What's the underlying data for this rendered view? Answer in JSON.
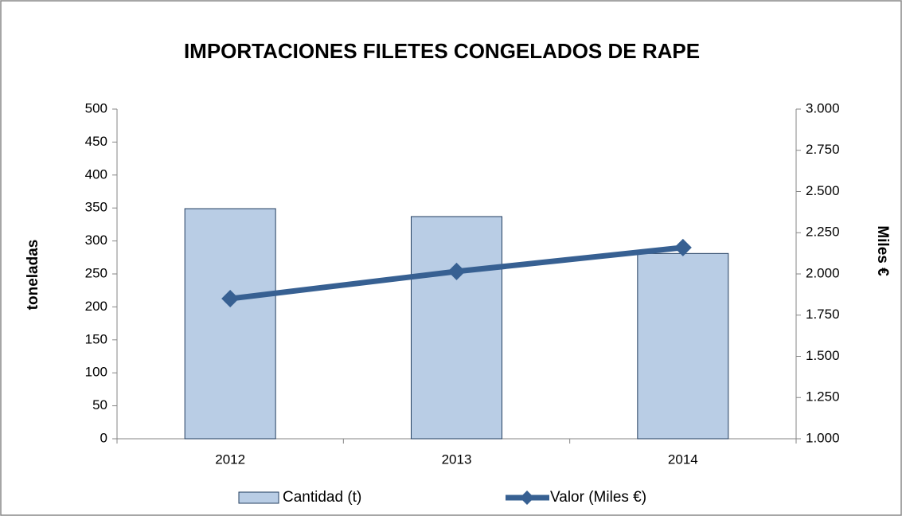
{
  "chart_data": {
    "type": "bar",
    "title": "IMPORTACIONES FILETES CONGELADOS DE RAPE",
    "categories": [
      "2012",
      "2013",
      "2014"
    ],
    "series": [
      {
        "name": "Cantidad (t)",
        "type": "bar",
        "color": "#b9cde5",
        "values": [
          349,
          337,
          281
        ]
      },
      {
        "name": "Valor (Miles €)",
        "type": "line",
        "axis": "y2",
        "color": "#376092",
        "values": [
          1850,
          2015,
          2160
        ]
      }
    ],
    "ylabel": "toneladas",
    "y2label": "Miles €",
    "ylim": [
      0,
      500
    ],
    "yticks": [
      0,
      50,
      100,
      150,
      200,
      250,
      300,
      350,
      400,
      450,
      500
    ],
    "y2lim": [
      1000,
      3000
    ],
    "y2ticks": [
      {
        "value": 1000,
        "label": "1.000"
      },
      {
        "value": 1250,
        "label": "1.250"
      },
      {
        "value": 1500,
        "label": "1.500"
      },
      {
        "value": 1750,
        "label": "1.750"
      },
      {
        "value": 2000,
        "label": "2.000"
      },
      {
        "value": 2250,
        "label": "2.250"
      },
      {
        "value": 2500,
        "label": "2.500"
      },
      {
        "value": 2750,
        "label": "2.750"
      },
      {
        "value": 3000,
        "label": "3.000"
      }
    ],
    "legend": "bottom"
  }
}
